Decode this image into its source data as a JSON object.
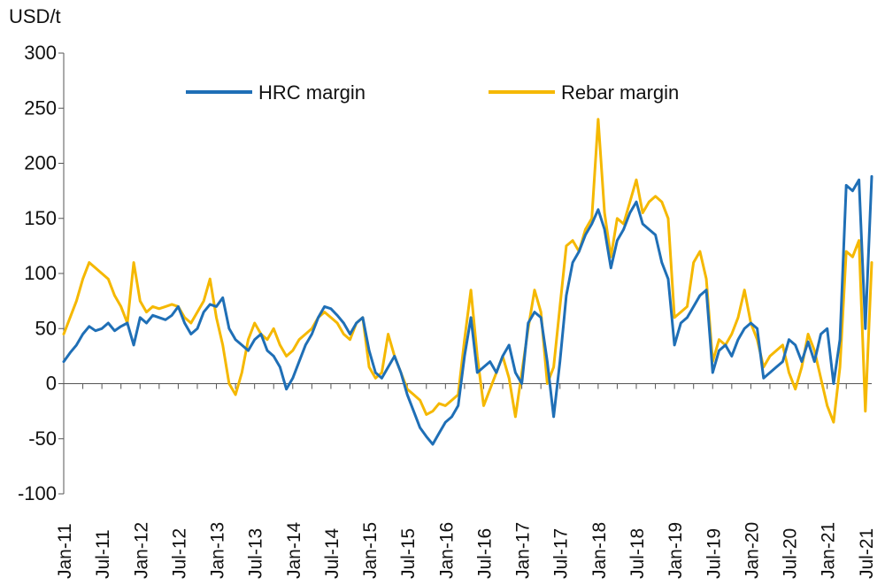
{
  "chart_data": {
    "type": "line",
    "ylabel": "USD/t",
    "ylim": [
      -100,
      300
    ],
    "yticks": [
      -100,
      -50,
      0,
      50,
      100,
      150,
      200,
      250,
      300
    ],
    "grid": false,
    "legend_position": "top",
    "x_tick_labels": [
      "Jan-11",
      "Jul-11",
      "Jan-12",
      "Jul-12",
      "Jan-13",
      "Jul-13",
      "Jan-14",
      "Jul-14",
      "Jan-15",
      "Jul-15",
      "Jan-16",
      "Jul-16",
      "Jan-17",
      "Jul-17",
      "Jan-18",
      "Jul-18",
      "Jan-19",
      "Jul-19",
      "Jan-20",
      "Jul-20",
      "Jan-21",
      "Jul-21"
    ],
    "series": [
      {
        "name": "HRC margin",
        "color": "#1f6fb6",
        "points": [
          [
            "2011-01",
            20
          ],
          [
            "2011-02",
            28
          ],
          [
            "2011-03",
            35
          ],
          [
            "2011-04",
            45
          ],
          [
            "2011-05",
            52
          ],
          [
            "2011-06",
            48
          ],
          [
            "2011-07",
            50
          ],
          [
            "2011-08",
            55
          ],
          [
            "2011-09",
            48
          ],
          [
            "2011-10",
            52
          ],
          [
            "2011-11",
            55
          ],
          [
            "2011-12",
            35
          ],
          [
            "2012-01",
            60
          ],
          [
            "2012-02",
            55
          ],
          [
            "2012-03",
            62
          ],
          [
            "2012-04",
            60
          ],
          [
            "2012-05",
            58
          ],
          [
            "2012-06",
            62
          ],
          [
            "2012-07",
            70
          ],
          [
            "2012-08",
            55
          ],
          [
            "2012-09",
            45
          ],
          [
            "2012-10",
            50
          ],
          [
            "2012-11",
            65
          ],
          [
            "2012-12",
            72
          ],
          [
            "2013-01",
            70
          ],
          [
            "2013-02",
            78
          ],
          [
            "2013-03",
            50
          ],
          [
            "2013-04",
            40
          ],
          [
            "2013-05",
            35
          ],
          [
            "2013-06",
            30
          ],
          [
            "2013-07",
            40
          ],
          [
            "2013-08",
            45
          ],
          [
            "2013-09",
            30
          ],
          [
            "2013-10",
            25
          ],
          [
            "2013-11",
            15
          ],
          [
            "2013-12",
            -5
          ],
          [
            "2014-01",
            5
          ],
          [
            "2014-02",
            20
          ],
          [
            "2014-03",
            35
          ],
          [
            "2014-04",
            45
          ],
          [
            "2014-05",
            60
          ],
          [
            "2014-06",
            70
          ],
          [
            "2014-07",
            68
          ],
          [
            "2014-08",
            62
          ],
          [
            "2014-09",
            55
          ],
          [
            "2014-10",
            45
          ],
          [
            "2014-11",
            55
          ],
          [
            "2014-12",
            60
          ],
          [
            "2015-01",
            30
          ],
          [
            "2015-02",
            10
          ],
          [
            "2015-03",
            5
          ],
          [
            "2015-04",
            15
          ],
          [
            "2015-05",
            25
          ],
          [
            "2015-06",
            10
          ],
          [
            "2015-07",
            -10
          ],
          [
            "2015-08",
            -25
          ],
          [
            "2015-09",
            -40
          ],
          [
            "2015-10",
            -48
          ],
          [
            "2015-11",
            -55
          ],
          [
            "2015-12",
            -45
          ],
          [
            "2016-01",
            -35
          ],
          [
            "2016-02",
            -30
          ],
          [
            "2016-03",
            -20
          ],
          [
            "2016-04",
            25
          ],
          [
            "2016-05",
            60
          ],
          [
            "2016-06",
            10
          ],
          [
            "2016-07",
            15
          ],
          [
            "2016-08",
            20
          ],
          [
            "2016-09",
            10
          ],
          [
            "2016-10",
            25
          ],
          [
            "2016-11",
            35
          ],
          [
            "2016-12",
            10
          ],
          [
            "2017-01",
            0
          ],
          [
            "2017-02",
            55
          ],
          [
            "2017-03",
            65
          ],
          [
            "2017-04",
            60
          ],
          [
            "2017-05",
            20
          ],
          [
            "2017-06",
            -30
          ],
          [
            "2017-07",
            20
          ],
          [
            "2017-08",
            80
          ],
          [
            "2017-09",
            110
          ],
          [
            "2017-10",
            120
          ],
          [
            "2017-11",
            135
          ],
          [
            "2017-12",
            145
          ],
          [
            "2018-01",
            158
          ],
          [
            "2018-02",
            140
          ],
          [
            "2018-03",
            105
          ],
          [
            "2018-04",
            130
          ],
          [
            "2018-05",
            140
          ],
          [
            "2018-06",
            155
          ],
          [
            "2018-07",
            165
          ],
          [
            "2018-08",
            145
          ],
          [
            "2018-09",
            140
          ],
          [
            "2018-10",
            135
          ],
          [
            "2018-11",
            110
          ],
          [
            "2018-12",
            95
          ],
          [
            "2019-01",
            35
          ],
          [
            "2019-02",
            55
          ],
          [
            "2019-03",
            60
          ],
          [
            "2019-04",
            70
          ],
          [
            "2019-05",
            80
          ],
          [
            "2019-06",
            85
          ],
          [
            "2019-07",
            10
          ],
          [
            "2019-08",
            30
          ],
          [
            "2019-09",
            35
          ],
          [
            "2019-10",
            25
          ],
          [
            "2019-11",
            40
          ],
          [
            "2019-12",
            50
          ],
          [
            "2020-01",
            55
          ],
          [
            "2020-02",
            50
          ],
          [
            "2020-03",
            5
          ],
          [
            "2020-04",
            10
          ],
          [
            "2020-05",
            15
          ],
          [
            "2020-06",
            20
          ],
          [
            "2020-07",
            40
          ],
          [
            "2020-08",
            35
          ],
          [
            "2020-09",
            20
          ],
          [
            "2020-10",
            38
          ],
          [
            "2020-11",
            20
          ],
          [
            "2020-12",
            45
          ],
          [
            "2021-01",
            50
          ],
          [
            "2021-02",
            0
          ],
          [
            "2021-03",
            40
          ],
          [
            "2021-04",
            180
          ],
          [
            "2021-05",
            175
          ],
          [
            "2021-06",
            185
          ],
          [
            "2021-07",
            50
          ],
          [
            "2021-08",
            188
          ]
        ]
      },
      {
        "name": "Rebar margin",
        "color": "#f5b800",
        "points": [
          [
            "2011-01",
            45
          ],
          [
            "2011-02",
            60
          ],
          [
            "2011-03",
            75
          ],
          [
            "2011-04",
            95
          ],
          [
            "2011-05",
            110
          ],
          [
            "2011-06",
            105
          ],
          [
            "2011-07",
            100
          ],
          [
            "2011-08",
            95
          ],
          [
            "2011-09",
            80
          ],
          [
            "2011-10",
            70
          ],
          [
            "2011-11",
            55
          ],
          [
            "2011-12",
            110
          ],
          [
            "2012-01",
            75
          ],
          [
            "2012-02",
            65
          ],
          [
            "2012-03",
            70
          ],
          [
            "2012-04",
            68
          ],
          [
            "2012-05",
            70
          ],
          [
            "2012-06",
            72
          ],
          [
            "2012-07",
            70
          ],
          [
            "2012-08",
            60
          ],
          [
            "2012-09",
            55
          ],
          [
            "2012-10",
            65
          ],
          [
            "2012-11",
            75
          ],
          [
            "2012-12",
            95
          ],
          [
            "2013-01",
            60
          ],
          [
            "2013-02",
            35
          ],
          [
            "2013-03",
            0
          ],
          [
            "2013-04",
            -10
          ],
          [
            "2013-05",
            10
          ],
          [
            "2013-06",
            40
          ],
          [
            "2013-07",
            55
          ],
          [
            "2013-08",
            45
          ],
          [
            "2013-09",
            40
          ],
          [
            "2013-10",
            50
          ],
          [
            "2013-11",
            35
          ],
          [
            "2013-12",
            25
          ],
          [
            "2014-01",
            30
          ],
          [
            "2014-02",
            40
          ],
          [
            "2014-03",
            45
          ],
          [
            "2014-04",
            50
          ],
          [
            "2014-05",
            60
          ],
          [
            "2014-06",
            65
          ],
          [
            "2014-07",
            60
          ],
          [
            "2014-08",
            55
          ],
          [
            "2014-09",
            45
          ],
          [
            "2014-10",
            40
          ],
          [
            "2014-11",
            55
          ],
          [
            "2014-12",
            60
          ],
          [
            "2015-01",
            15
          ],
          [
            "2015-02",
            5
          ],
          [
            "2015-03",
            10
          ],
          [
            "2015-04",
            45
          ],
          [
            "2015-05",
            25
          ],
          [
            "2015-06",
            10
          ],
          [
            "2015-07",
            -5
          ],
          [
            "2015-08",
            -10
          ],
          [
            "2015-09",
            -15
          ],
          [
            "2015-10",
            -28
          ],
          [
            "2015-11",
            -25
          ],
          [
            "2015-12",
            -18
          ],
          [
            "2016-01",
            -20
          ],
          [
            "2016-02",
            -15
          ],
          [
            "2016-03",
            -10
          ],
          [
            "2016-04",
            40
          ],
          [
            "2016-05",
            85
          ],
          [
            "2016-06",
            25
          ],
          [
            "2016-07",
            -20
          ],
          [
            "2016-08",
            -5
          ],
          [
            "2016-09",
            10
          ],
          [
            "2016-10",
            25
          ],
          [
            "2016-11",
            5
          ],
          [
            "2016-12",
            -30
          ],
          [
            "2017-01",
            10
          ],
          [
            "2017-02",
            50
          ],
          [
            "2017-03",
            85
          ],
          [
            "2017-04",
            65
          ],
          [
            "2017-05",
            0
          ],
          [
            "2017-06",
            15
          ],
          [
            "2017-07",
            70
          ],
          [
            "2017-08",
            125
          ],
          [
            "2017-09",
            130
          ],
          [
            "2017-10",
            120
          ],
          [
            "2017-11",
            140
          ],
          [
            "2017-12",
            150
          ],
          [
            "2018-01",
            240
          ],
          [
            "2018-02",
            155
          ],
          [
            "2018-03",
            115
          ],
          [
            "2018-04",
            150
          ],
          [
            "2018-05",
            145
          ],
          [
            "2018-06",
            165
          ],
          [
            "2018-07",
            185
          ],
          [
            "2018-08",
            155
          ],
          [
            "2018-09",
            165
          ],
          [
            "2018-10",
            170
          ],
          [
            "2018-11",
            165
          ],
          [
            "2018-12",
            150
          ],
          [
            "2019-01",
            60
          ],
          [
            "2019-02",
            65
          ],
          [
            "2019-03",
            70
          ],
          [
            "2019-04",
            110
          ],
          [
            "2019-05",
            120
          ],
          [
            "2019-06",
            95
          ],
          [
            "2019-07",
            20
          ],
          [
            "2019-08",
            40
          ],
          [
            "2019-09",
            35
          ],
          [
            "2019-10",
            45
          ],
          [
            "2019-11",
            60
          ],
          [
            "2019-12",
            85
          ],
          [
            "2020-01",
            55
          ],
          [
            "2020-02",
            40
          ],
          [
            "2020-03",
            15
          ],
          [
            "2020-04",
            25
          ],
          [
            "2020-05",
            30
          ],
          [
            "2020-06",
            35
          ],
          [
            "2020-07",
            10
          ],
          [
            "2020-08",
            -5
          ],
          [
            "2020-09",
            15
          ],
          [
            "2020-10",
            45
          ],
          [
            "2020-11",
            30
          ],
          [
            "2020-12",
            5
          ],
          [
            "2021-01",
            -20
          ],
          [
            "2021-02",
            -35
          ],
          [
            "2021-03",
            15
          ],
          [
            "2021-04",
            120
          ],
          [
            "2021-05",
            115
          ],
          [
            "2021-06",
            130
          ],
          [
            "2021-07",
            -25
          ],
          [
            "2021-08",
            110
          ]
        ]
      }
    ]
  }
}
